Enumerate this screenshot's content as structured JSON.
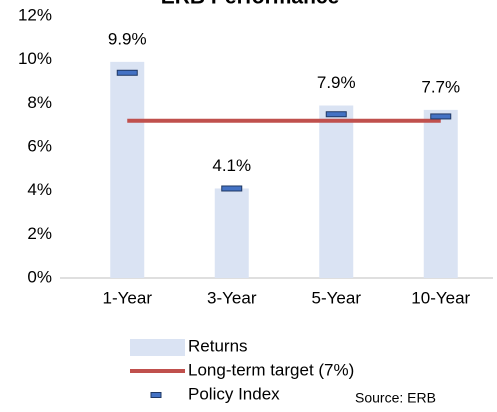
{
  "chart_data": {
    "type": "bar",
    "title": "ERB Performance",
    "categories": [
      "1-Year",
      "3-Year",
      "5-Year",
      "10-Year"
    ],
    "series": [
      {
        "name": "Returns",
        "type": "bar",
        "color": "#dae3f3",
        "values": [
          9.9,
          4.1,
          7.9,
          7.7
        ],
        "value_labels": [
          "9.9%",
          "4.1%",
          "7.9%",
          "7.7%"
        ]
      },
      {
        "name": "Long-term target (7%)",
        "type": "line",
        "color": "#c0504d",
        "values": [
          7.2,
          7.2,
          7.2,
          7.2
        ]
      },
      {
        "name": "Policy Index",
        "type": "marker",
        "color": "#4472c4",
        "values": [
          9.4,
          4.1,
          7.5,
          7.4
        ]
      }
    ],
    "ylim": [
      0,
      12
    ],
    "yticks": [
      {
        "value": 0,
        "label": "0%"
      },
      {
        "value": 2,
        "label": "2%"
      },
      {
        "value": 4,
        "label": "4%"
      },
      {
        "value": 6,
        "label": "6%"
      },
      {
        "value": 8,
        "label": "8%"
      },
      {
        "value": 10,
        "label": "10%"
      },
      {
        "value": 12,
        "label": "12%"
      }
    ],
    "source": "Source: ERB"
  }
}
